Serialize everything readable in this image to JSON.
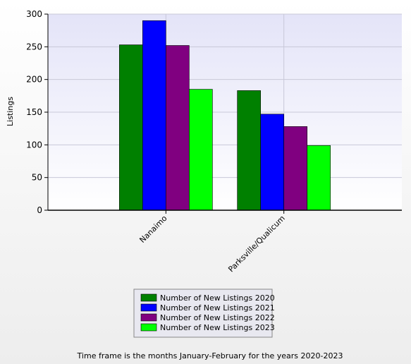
{
  "chart_data": {
    "type": "bar",
    "ylabel": "Listings",
    "categories": [
      "Nanaimo",
      "Parksville/Qualicum"
    ],
    "series": [
      {
        "name": "Number of New Listings 2020",
        "color": "#008000",
        "values": [
          253,
          183
        ]
      },
      {
        "name": "Number of New Listings 2021",
        "color": "#0000ff",
        "values": [
          290,
          147
        ]
      },
      {
        "name": "Number of New Listings 2022",
        "color": "#800080",
        "values": [
          252,
          128
        ]
      },
      {
        "name": "Number of New Listings 2023",
        "color": "#00ff00",
        "values": [
          185,
          99
        ]
      }
    ],
    "ylim": [
      0,
      300
    ],
    "yticks": [
      0,
      50,
      100,
      150,
      200,
      250,
      300
    ],
    "grid": true,
    "footnote": "Time frame is the months January-February for the years 2020-2023"
  }
}
